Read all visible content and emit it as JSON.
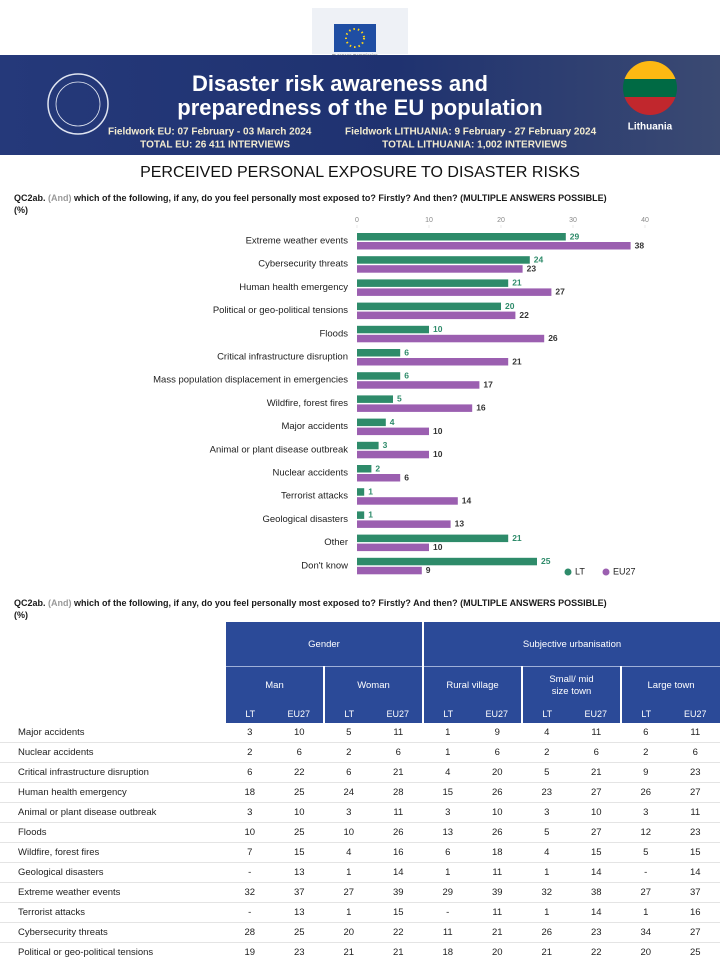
{
  "header": {
    "logo_text": "European Commission",
    "title_lines": [
      "Disaster risk awareness and",
      "preparedness of the EU population"
    ],
    "fieldwork_eu": "Fieldwork EU: 07 February - 03 March 2024",
    "total_eu": "TOTAL EU: 26 411 INTERVIEWS",
    "fieldwork_country": "Fieldwork LITHUANIA: 9 February - 27 February 2024",
    "total_country": "TOTAL LITHUANIA: 1,002 INTERVIEWS",
    "country": "Lithuania"
  },
  "section_title": "PERCEIVED PERSONAL EXPOSURE TO DISASTER RISKS",
  "chart_question": {
    "code": "QC2ab.",
    "qualifier": "(And)",
    "text": "which of the following, if any, do you feel personally most exposed to? Firstly? And then? (MULTIPLE ANSWERS POSSIBLE)",
    "unit": "(%)"
  },
  "chart_data": {
    "type": "hbar",
    "categories": [
      "Extreme weather events",
      "Cybersecurity threats",
      "Human health emergency",
      "Political or geo-political tensions",
      "Floods",
      "Critical infrastructure disruption",
      "Mass population displacement in emergencies",
      "Wildfire, forest fires",
      "Major accidents",
      "Animal or plant disease outbreak",
      "Nuclear accidents",
      "Terrorist attacks",
      "Geological disasters",
      "Other",
      "Don't know"
    ],
    "series": [
      {
        "name": "LT",
        "color": "#2e8b6a",
        "values": [
          29,
          24,
          21,
          20,
          10,
          6,
          6,
          5,
          4,
          3,
          2,
          1,
          1,
          21,
          25
        ]
      },
      {
        "name": "EU27",
        "color": "#9b5fb0",
        "values": [
          38,
          23,
          27,
          22,
          26,
          21,
          17,
          16,
          10,
          10,
          6,
          14,
          13,
          10,
          9
        ]
      }
    ],
    "xlim": [
      0,
      40
    ],
    "xticks": [
      0,
      10,
      20,
      30,
      40
    ],
    "grid": false,
    "legend": "bottom-right"
  },
  "table": {
    "question": {
      "code": "QC2ab.",
      "qualifier": "(And)",
      "text": "which of the following, if any, do you feel personally most exposed to? Firstly? And then? (MULTIPLE ANSWERS POSSIBLE)",
      "unit": "(%)"
    },
    "groups": [
      {
        "label": "Gender",
        "columns": [
          "Man",
          "Woman"
        ]
      },
      {
        "label": "Subjective urbanisation",
        "columns": [
          "Rural village",
          "Small/ mid size town",
          "Large town"
        ]
      }
    ],
    "subcolumns": [
      "LT",
      "EU27"
    ],
    "rows": [
      {
        "label": "Major accidents",
        "values": [
          3,
          10,
          5,
          11,
          1,
          9,
          4,
          11,
          6,
          11
        ]
      },
      {
        "label": "Nuclear accidents",
        "values": [
          2,
          6,
          2,
          6,
          1,
          6,
          2,
          6,
          2,
          6
        ]
      },
      {
        "label": "Critical infrastructure disruption",
        "values": [
          6,
          22,
          6,
          21,
          4,
          20,
          5,
          21,
          9,
          23
        ]
      },
      {
        "label": "Human health emergency",
        "values": [
          18,
          25,
          24,
          28,
          15,
          26,
          23,
          27,
          26,
          27
        ]
      },
      {
        "label": "Animal or plant disease outbreak",
        "values": [
          3,
          10,
          3,
          11,
          3,
          10,
          3,
          10,
          3,
          11
        ]
      },
      {
        "label": "Floods",
        "values": [
          10,
          25,
          10,
          26,
          13,
          26,
          5,
          27,
          12,
          23
        ]
      },
      {
        "label": "Wildfire, forest fires",
        "values": [
          7,
          15,
          4,
          16,
          6,
          18,
          4,
          15,
          5,
          15
        ]
      },
      {
        "label": "Geological disasters",
        "values": [
          "-",
          13,
          1,
          14,
          1,
          11,
          1,
          14,
          "-",
          14
        ]
      },
      {
        "label": "Extreme weather events",
        "values": [
          32,
          37,
          27,
          39,
          29,
          39,
          32,
          38,
          27,
          37
        ]
      },
      {
        "label": "Terrorist attacks",
        "values": [
          "-",
          13,
          1,
          15,
          "-",
          11,
          1,
          14,
          1,
          16
        ]
      },
      {
        "label": "Cybersecurity threats",
        "values": [
          28,
          25,
          20,
          22,
          11,
          21,
          26,
          23,
          34,
          27
        ]
      },
      {
        "label": "Political or geo-political tensions",
        "values": [
          19,
          23,
          21,
          21,
          18,
          20,
          21,
          22,
          20,
          25
        ]
      }
    ]
  }
}
